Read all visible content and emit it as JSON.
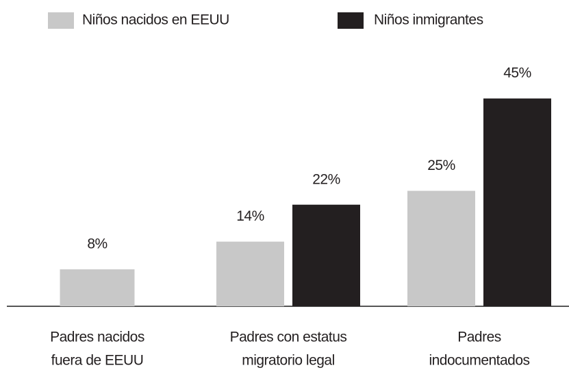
{
  "chart_data": {
    "type": "bar",
    "categories": [
      [
        "Padres nacidos",
        "fuera de EEUU"
      ],
      [
        "Padres con estatus",
        "migratorio legal"
      ],
      [
        "Padres",
        "indocumentados"
      ]
    ],
    "series": [
      {
        "name": "Niños nacidos en EEUU",
        "color": "#c8c8c8",
        "values": [
          8,
          14,
          25
        ],
        "value_labels": [
          "8%",
          "14%",
          "25%"
        ]
      },
      {
        "name": "Niños inmigrantes",
        "color": "#231f20",
        "values": [
          null,
          22,
          45
        ],
        "value_labels": [
          null,
          "22%",
          "45%"
        ]
      }
    ],
    "ylim": [
      0,
      50
    ],
    "legend": "top"
  }
}
